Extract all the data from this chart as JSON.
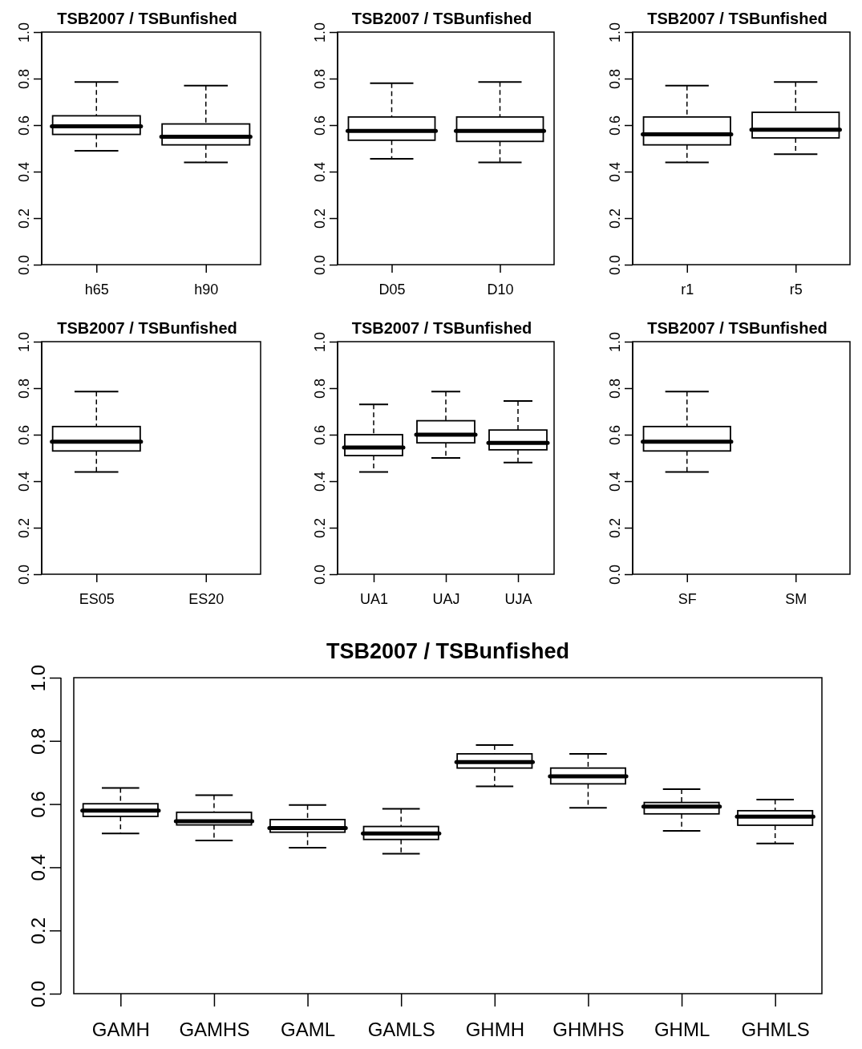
{
  "chart_data": [
    {
      "type": "box",
      "title": "TSB2007 / TSBunfished",
      "categories": [
        "h65",
        "h90"
      ],
      "ylim": [
        0,
        1
      ],
      "yticks": [
        {
          "value": 0,
          "label": "0.0"
        },
        {
          "value": 0.2,
          "label": "0.2"
        },
        {
          "value": 0.4,
          "label": "0.4"
        },
        {
          "value": 0.6,
          "label": "0.6"
        },
        {
          "value": 0.8,
          "label": "0.8"
        },
        {
          "value": 1,
          "label": "1.0"
        }
      ],
      "boxes": [
        {
          "low": 0.49,
          "q1": 0.56,
          "median": 0.595,
          "q3": 0.64,
          "high": 0.785
        },
        {
          "low": 0.44,
          "q1": 0.515,
          "median": 0.55,
          "q3": 0.605,
          "high": 0.77
        }
      ]
    },
    {
      "type": "box",
      "title": "TSB2007 / TSBunfished",
      "categories": [
        "D05",
        "D10"
      ],
      "ylim": [
        0,
        1
      ],
      "yticks": [
        {
          "value": 0,
          "label": "0.0"
        },
        {
          "value": 0.2,
          "label": "0.2"
        },
        {
          "value": 0.4,
          "label": "0.4"
        },
        {
          "value": 0.6,
          "label": "0.6"
        },
        {
          "value": 0.8,
          "label": "0.8"
        },
        {
          "value": 1,
          "label": "1.0"
        }
      ],
      "boxes": [
        {
          "low": 0.455,
          "q1": 0.535,
          "median": 0.575,
          "q3": 0.635,
          "high": 0.78
        },
        {
          "low": 0.44,
          "q1": 0.53,
          "median": 0.575,
          "q3": 0.635,
          "high": 0.785
        }
      ]
    },
    {
      "type": "box",
      "title": "TSB2007 / TSBunfished",
      "categories": [
        "r1",
        "r5"
      ],
      "ylim": [
        0,
        1
      ],
      "yticks": [
        {
          "value": 0,
          "label": "0.0"
        },
        {
          "value": 0.2,
          "label": "0.2"
        },
        {
          "value": 0.4,
          "label": "0.4"
        },
        {
          "value": 0.6,
          "label": "0.6"
        },
        {
          "value": 0.8,
          "label": "0.8"
        },
        {
          "value": 1,
          "label": "1.0"
        }
      ],
      "boxes": [
        {
          "low": 0.44,
          "q1": 0.515,
          "median": 0.56,
          "q3": 0.635,
          "high": 0.77
        },
        {
          "low": 0.475,
          "q1": 0.545,
          "median": 0.58,
          "q3": 0.655,
          "high": 0.785
        }
      ]
    },
    {
      "type": "box",
      "title": "TSB2007 / TSBunfished",
      "categories": [
        "ES05",
        "ES20"
      ],
      "ylim": [
        0,
        1
      ],
      "yticks": [
        {
          "value": 0,
          "label": "0.0"
        },
        {
          "value": 0.2,
          "label": "0.2"
        },
        {
          "value": 0.4,
          "label": "0.4"
        },
        {
          "value": 0.6,
          "label": "0.6"
        },
        {
          "value": 0.8,
          "label": "0.8"
        },
        {
          "value": 1,
          "label": "1.0"
        }
      ],
      "boxes": [
        {
          "low": 0.44,
          "q1": 0.53,
          "median": 0.57,
          "q3": 0.635,
          "high": 0.785
        },
        null
      ]
    },
    {
      "type": "box",
      "title": "TSB2007 / TSBunfished",
      "categories": [
        "UA1",
        "UAJ",
        "UJA"
      ],
      "ylim": [
        0,
        1
      ],
      "yticks": [
        {
          "value": 0,
          "label": "0.0"
        },
        {
          "value": 0.2,
          "label": "0.2"
        },
        {
          "value": 0.4,
          "label": "0.4"
        },
        {
          "value": 0.6,
          "label": "0.6"
        },
        {
          "value": 0.8,
          "label": "0.8"
        },
        {
          "value": 1,
          "label": "1.0"
        }
      ],
      "boxes": [
        {
          "low": 0.44,
          "q1": 0.51,
          "median": 0.545,
          "q3": 0.6,
          "high": 0.73
        },
        {
          "low": 0.5,
          "q1": 0.565,
          "median": 0.6,
          "q3": 0.66,
          "high": 0.785
        },
        {
          "low": 0.48,
          "q1": 0.535,
          "median": 0.565,
          "q3": 0.62,
          "high": 0.745
        }
      ]
    },
    {
      "type": "box",
      "title": "TSB2007 / TSBunfished",
      "categories": [
        "SF",
        "SM"
      ],
      "ylim": [
        0,
        1
      ],
      "yticks": [
        {
          "value": 0,
          "label": "0.0"
        },
        {
          "value": 0.2,
          "label": "0.2"
        },
        {
          "value": 0.4,
          "label": "0.4"
        },
        {
          "value": 0.6,
          "label": "0.6"
        },
        {
          "value": 0.8,
          "label": "0.8"
        },
        {
          "value": 1,
          "label": "1.0"
        }
      ],
      "boxes": [
        {
          "low": 0.44,
          "q1": 0.53,
          "median": 0.57,
          "q3": 0.635,
          "high": 0.785
        },
        null
      ]
    },
    {
      "type": "box",
      "title": "TSB2007 / TSBunfished",
      "categories": [
        "GAMH",
        "GAMHS",
        "GAML",
        "GAMLS",
        "GHMH",
        "GHMHS",
        "GHML",
        "GHMLS"
      ],
      "ylim": [
        0,
        1
      ],
      "yticks": [
        {
          "value": 0,
          "label": "0.0"
        },
        {
          "value": 0.2,
          "label": "0.2"
        },
        {
          "value": 0.4,
          "label": "0.4"
        },
        {
          "value": 0.6,
          "label": "0.6"
        },
        {
          "value": 0.8,
          "label": "0.8"
        },
        {
          "value": 1,
          "label": "1.0"
        }
      ],
      "boxes": [
        {
          "low": 0.507,
          "q1": 0.561,
          "median": 0.579,
          "q3": 0.601,
          "high": 0.651
        },
        {
          "low": 0.485,
          "q1": 0.534,
          "median": 0.546,
          "q3": 0.574,
          "high": 0.628
        },
        {
          "low": 0.462,
          "q1": 0.511,
          "median": 0.524,
          "q3": 0.551,
          "high": 0.597
        },
        {
          "low": 0.443,
          "q1": 0.488,
          "median": 0.507,
          "q3": 0.529,
          "high": 0.585
        },
        {
          "low": 0.656,
          "q1": 0.714,
          "median": 0.733,
          "q3": 0.759,
          "high": 0.787
        },
        {
          "low": 0.588,
          "q1": 0.664,
          "median": 0.688,
          "q3": 0.714,
          "high": 0.759
        },
        {
          "low": 0.515,
          "q1": 0.569,
          "median": 0.592,
          "q3": 0.605,
          "high": 0.647
        },
        {
          "low": 0.475,
          "q1": 0.533,
          "median": 0.56,
          "q3": 0.579,
          "high": 0.614
        }
      ]
    }
  ]
}
